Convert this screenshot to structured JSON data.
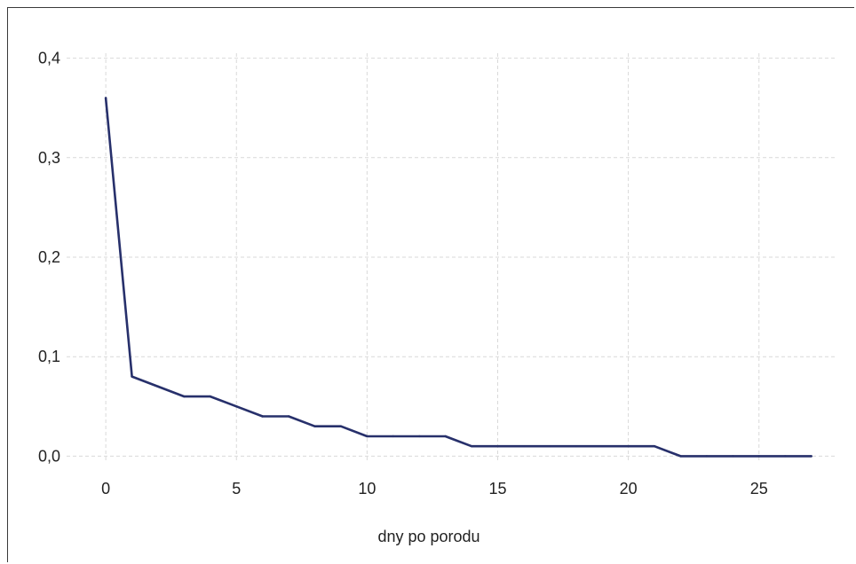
{
  "chart_data": {
    "type": "line",
    "xlabel": "dny po porodu",
    "ylabel": "",
    "xlim": [
      -1.5,
      28
    ],
    "ylim": [
      -0.005,
      0.405
    ],
    "x_ticks": [
      0,
      5,
      10,
      15,
      20,
      25
    ],
    "x_tick_labels": [
      "0",
      "5",
      "10",
      "15",
      "20",
      "25"
    ],
    "y_ticks": [
      0.0,
      0.1,
      0.2,
      0.3,
      0.4
    ],
    "y_tick_labels": [
      "0,0",
      "0,1",
      "0,2",
      "0,3",
      "0,4"
    ],
    "grid": true,
    "series": [
      {
        "color": "#27306b",
        "x": [
          0,
          1,
          2,
          3,
          4,
          5,
          6,
          7,
          8,
          9,
          10,
          11,
          12,
          13,
          14,
          15,
          16,
          17,
          18,
          19,
          20,
          21,
          22,
          23,
          24,
          25,
          26,
          27
        ],
        "y": [
          0.36,
          0.08,
          0.07,
          0.06,
          0.06,
          0.05,
          0.04,
          0.04,
          0.03,
          0.03,
          0.02,
          0.02,
          0.02,
          0.02,
          0.01,
          0.01,
          0.01,
          0.01,
          0.01,
          0.01,
          0.01,
          0.01,
          0.0,
          0.0,
          0.0,
          0.0,
          0.0,
          0.0
        ]
      }
    ]
  }
}
